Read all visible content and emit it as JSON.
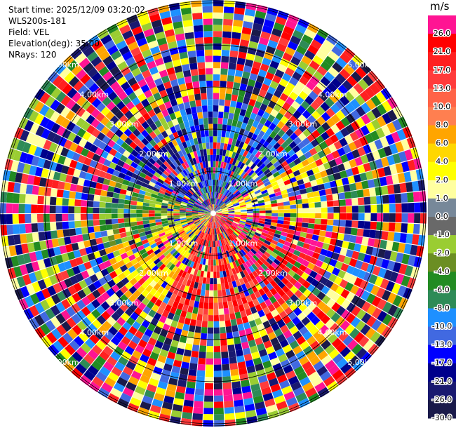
{
  "header": {
    "start_time": "Start time: 2025/12/09 03:20:02",
    "instrument": "WLS200s-181",
    "field": "Field: VEL",
    "elevation": "Elevation(deg): 35.00",
    "nrays": "NRays: 120"
  },
  "colorbar": {
    "units": "m/s",
    "levels": [
      {
        "label": "26.0",
        "color": "#ff1493"
      },
      {
        "label": "21.0",
        "color": "#ff0000"
      },
      {
        "label": "17.0",
        "color": "#ff2020"
      },
      {
        "label": "13.0",
        "color": "#ff3b3b"
      },
      {
        "label": "10.0",
        "color": "#ff6347"
      },
      {
        "label": "8.0",
        "color": "#ff7f50"
      },
      {
        "label": "6.0",
        "color": "#ffa500"
      },
      {
        "label": "4.0",
        "color": "#ffd700"
      },
      {
        "label": "2.0",
        "color": "#ffff00"
      },
      {
        "label": "1.0",
        "color": "#ffffa0"
      },
      {
        "label": "0.0",
        "color": "#778899"
      },
      {
        "label": "-1.0",
        "color": "#696969"
      },
      {
        "label": "-2.0",
        "color": "#9acd32"
      },
      {
        "label": "-4.0",
        "color": "#6b8e23"
      },
      {
        "label": "-6.0",
        "color": "#228b22"
      },
      {
        "label": "-8.0",
        "color": "#2e8b57"
      },
      {
        "label": "-10.0",
        "color": "#1e90ff"
      },
      {
        "label": "-13.0",
        "color": "#4169e1"
      },
      {
        "label": "-17.0",
        "color": "#0000ff"
      },
      {
        "label": "-21.0",
        "color": "#00008b"
      },
      {
        "label": "-26.0",
        "color": "#191970"
      },
      {
        "label": "-30.0",
        "color": "#1a1a4a"
      }
    ]
  },
  "chart_data": {
    "type": "heatmap",
    "projection": "polar PPI",
    "nrays": 120,
    "range_ring_labels": [
      "1.00km",
      "2.00km",
      "3.00km",
      "4.00km",
      "5.00km"
    ]
  }
}
